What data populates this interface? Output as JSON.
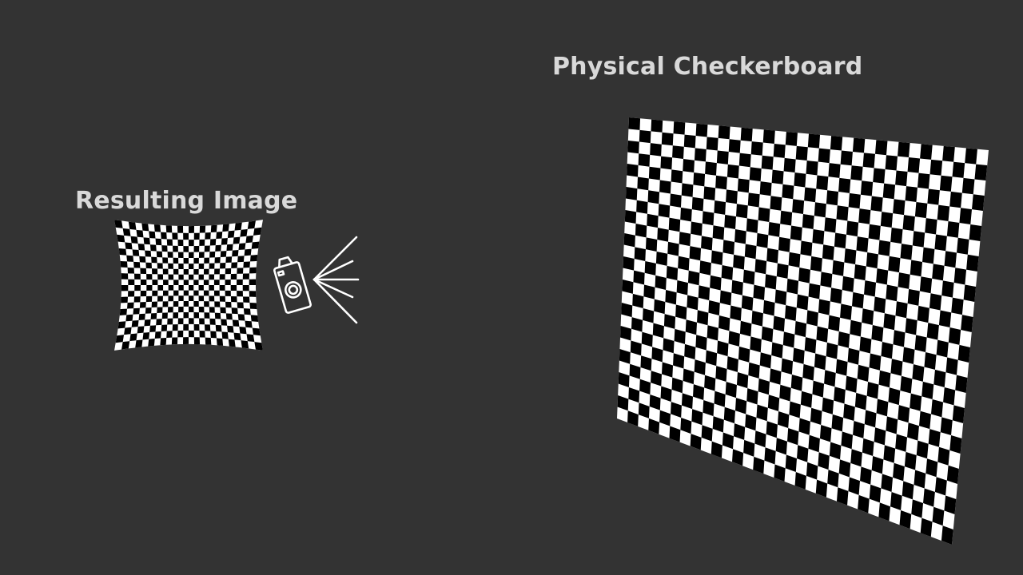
{
  "labels": {
    "physical": "Physical Checkerboard",
    "resulting": "Resulting Image"
  },
  "colors": {
    "background": "#333333",
    "text": "#d9d9d9",
    "icon": "#ffffff",
    "square_dark": "#000000",
    "square_light": "#ffffff"
  },
  "icons": {
    "camera": "camera-icon",
    "rays": "light-rays-icon"
  }
}
